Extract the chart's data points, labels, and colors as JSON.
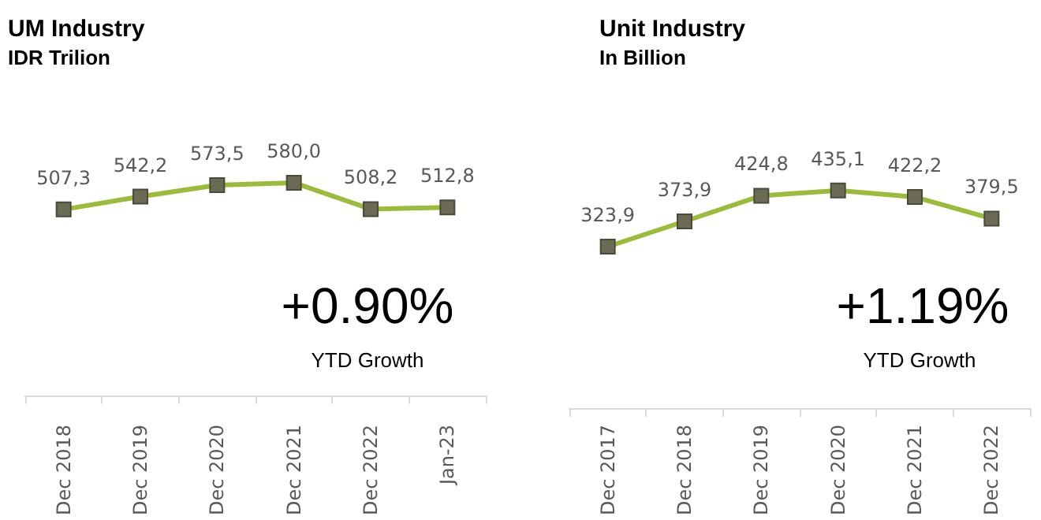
{
  "chart_data": [
    {
      "type": "line",
      "title": "UM Industry",
      "subtitle": "IDR Trilion",
      "categories": [
        "Dec 2018",
        "Dec 2019",
        "Dec 2020",
        "Dec 2021",
        "Dec 2022",
        "Jan-23"
      ],
      "series": [
        {
          "color": "#9bbb3b",
          "values": [
            507.3,
            542.2,
            573.5,
            580.0,
            508.2,
            512.8
          ],
          "value_labels": [
            "507,3",
            "542,2",
            "573,5",
            "580,0",
            "508,2",
            "512,8"
          ]
        }
      ],
      "marker": "square",
      "annotations": [
        "+0.90%",
        "YTD Growth"
      ]
    },
    {
      "type": "line",
      "title": "Unit Industry",
      "subtitle": "In Billion",
      "categories": [
        "Dec 2017",
        "Dec 2018",
        "Dec 2019",
        "Dec 2020",
        "Dec 2021",
        "Dec 2022"
      ],
      "series": [
        {
          "color": "#9bbb3b",
          "values": [
            323.9,
            373.9,
            424.8,
            435.1,
            422.2,
            379.5
          ],
          "value_labels": [
            "323,9",
            "373,9",
            "424,8",
            "435,1",
            "422,2",
            "379,5"
          ]
        }
      ],
      "marker": "square",
      "annotations": [
        "+1.19%",
        "YTD Growth"
      ]
    }
  ]
}
